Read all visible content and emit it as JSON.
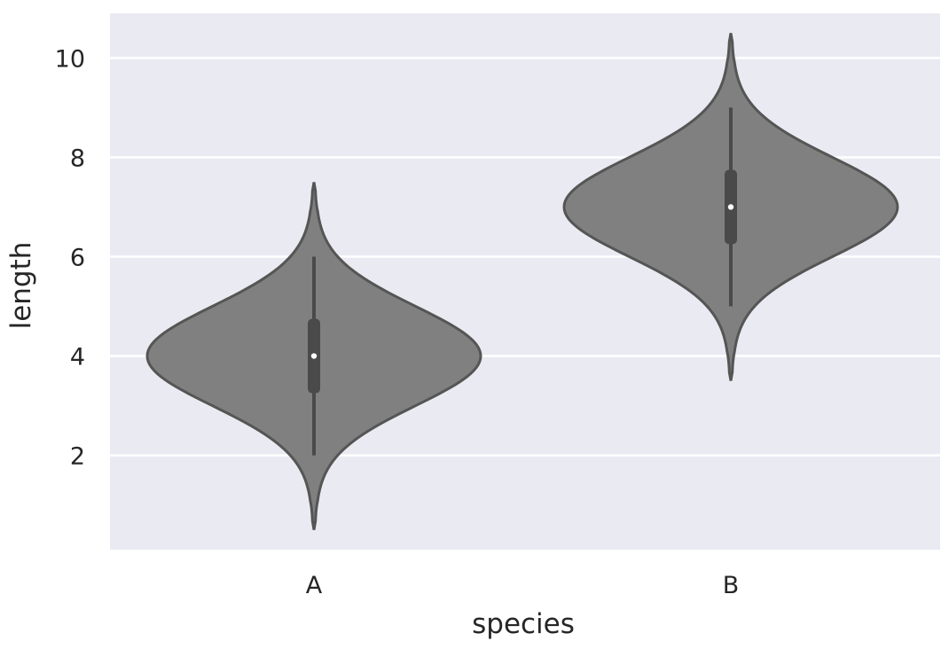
{
  "chart_data": {
    "type": "violin",
    "xlabel": "species",
    "ylabel": "length",
    "ylim": [
      0.1,
      10.9
    ],
    "yticks": [
      2,
      4,
      6,
      8,
      10
    ],
    "grid": true,
    "background_color": "#eaeaf2",
    "violin_color": "#808080",
    "edge_color": "#555555",
    "categories": [
      "A",
      "B"
    ],
    "violins": [
      {
        "category": "A",
        "min": 2,
        "q1": 3.25,
        "median": 4,
        "q3": 4.75,
        "max": 6,
        "kde_low": 0.5,
        "kde_high": 7.5
      },
      {
        "category": "B",
        "min": 5,
        "q1": 6.25,
        "median": 7,
        "q3": 7.75,
        "max": 9,
        "kde_low": 3.5,
        "kde_high": 10.5
      }
    ]
  }
}
